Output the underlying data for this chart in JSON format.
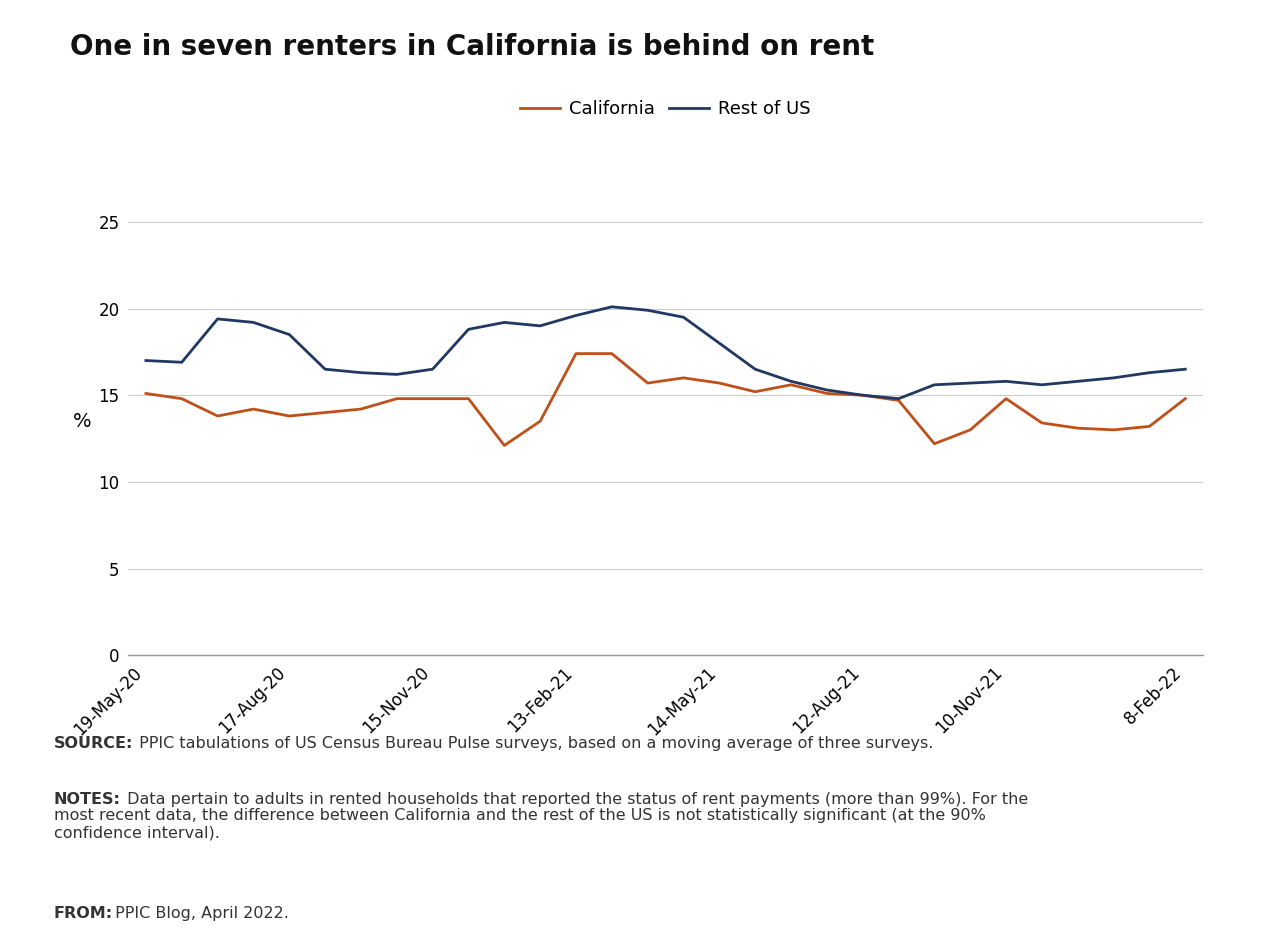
{
  "title": "One in seven renters in California is behind on rent",
  "ylabel": "%",
  "california_x": [
    0,
    1,
    2,
    3,
    4,
    5,
    6,
    7,
    8,
    9,
    10,
    11,
    12,
    13,
    14,
    15,
    16,
    17,
    18,
    19,
    20,
    21,
    22,
    23,
    24,
    25,
    26,
    27,
    28,
    29
  ],
  "california_y": [
    15.1,
    14.8,
    13.8,
    14.2,
    13.8,
    14.0,
    14.2,
    14.8,
    14.8,
    14.8,
    12.1,
    13.5,
    17.4,
    17.4,
    15.7,
    16.0,
    15.7,
    15.2,
    15.6,
    15.1,
    15.0,
    14.7,
    12.2,
    13.0,
    14.8,
    13.4,
    13.1,
    13.0,
    13.2,
    14.8
  ],
  "rest_of_us_x": [
    0,
    1,
    2,
    3,
    4,
    5,
    6,
    7,
    8,
    9,
    10,
    11,
    12,
    13,
    14,
    15,
    16,
    17,
    18,
    19,
    20,
    21,
    22,
    23,
    24,
    25,
    26,
    27,
    28,
    29
  ],
  "rest_of_us_y": [
    17.0,
    16.9,
    19.4,
    19.2,
    18.5,
    16.5,
    16.3,
    16.2,
    16.5,
    18.8,
    19.2,
    19.0,
    19.6,
    20.1,
    19.9,
    19.5,
    18.0,
    16.5,
    15.8,
    15.3,
    15.0,
    14.8,
    15.6,
    15.7,
    15.8,
    15.6,
    15.8,
    16.0,
    16.3,
    16.5
  ],
  "x_ticks": [
    0,
    4,
    8,
    12,
    16,
    20,
    24,
    29
  ],
  "x_tick_labels_final": [
    "19-May-20",
    "17-Aug-20",
    "15-Nov-20",
    "13-Feb-21",
    "14-May-21",
    "12-Aug-21",
    "10-Nov-21",
    "8-Feb-22"
  ],
  "ylim": [
    0,
    27
  ],
  "yticks": [
    0,
    5,
    10,
    15,
    20,
    25
  ],
  "california_color": "#C0501A",
  "rest_of_us_color": "#1F3864",
  "background_color": "#FFFFFF",
  "footer_bg_color": "#E8E8E8",
  "source_bold": "SOURCE:",
  "source_text": " PPIC tabulations of US Census Bureau Pulse surveys, based on a moving average of three surveys.",
  "notes_bold": "NOTES:",
  "notes_text": " Data pertain to adults in rented households that reported the status of rent payments (more than 99%). For the most recent data, the difference between California and the rest of the US is not statistically significant (at the 90% confidence interval).",
  "from_bold": "FROM:",
  "from_text": " PPIC Blog, April 2022.",
  "legend_california": "California",
  "legend_rest_of_us": "Rest of US",
  "line_width": 2.0,
  "title_fontsize": 20,
  "axis_fontsize": 12,
  "legend_fontsize": 13,
  "footer_fontsize": 11.5
}
